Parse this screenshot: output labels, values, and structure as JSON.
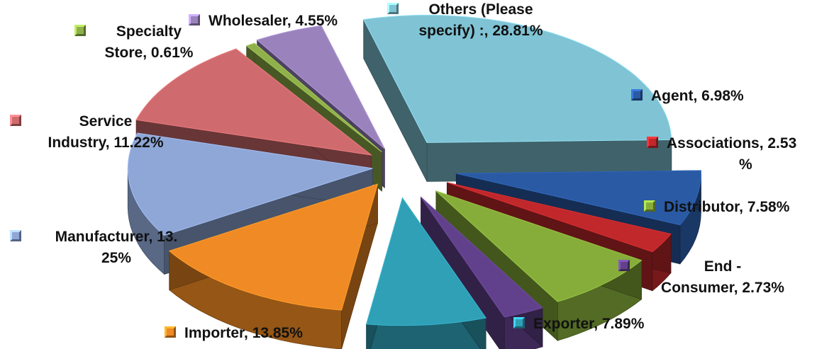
{
  "chart_data": {
    "type": "pie",
    "style": "exploded-3d",
    "legend_placement": "labels-beside-slices",
    "categories": [
      "Others (Please specify) :",
      "Agent",
      "Associations",
      "Distributor",
      "End - Consumer",
      "Exporter",
      "Importer",
      "Manufacturer",
      "Service Industry",
      "Specialty Store",
      "Wholesaler"
    ],
    "values": [
      28.81,
      6.98,
      2.53,
      7.58,
      2.73,
      7.89,
      13.85,
      13.25,
      11.22,
      0.61,
      4.55
    ],
    "colors": [
      "#7fc3d4",
      "#2a5aa3",
      "#c0282b",
      "#86ad3a",
      "#62418c",
      "#2fa0b6",
      "#f08a24",
      "#8ea7d6",
      "#cf6b6e",
      "#8fb04a",
      "#9a83bd"
    ],
    "labels": [
      {
        "category": "Others (Please specify) :",
        "lines": [
          "Others (Please",
          "specify) :, 28.81%"
        ]
      },
      {
        "category": "Agent",
        "lines": [
          "Agent, 6.98%"
        ]
      },
      {
        "category": "Associations",
        "lines": [
          "Associations, 2.53",
          "%"
        ]
      },
      {
        "category": "Distributor",
        "lines": [
          "Distributor, 7.58%"
        ]
      },
      {
        "category": "End - Consumer",
        "lines": [
          "End -",
          "Consumer, 2.73%"
        ]
      },
      {
        "category": "Exporter",
        "lines": [
          "Exporter, 7.89%"
        ]
      },
      {
        "category": "Importer",
        "lines": [
          "Importer, 13.85%"
        ]
      },
      {
        "category": "Manufacturer",
        "lines": [
          "Manufacturer, 13.",
          "25%"
        ]
      },
      {
        "category": "Service Industry",
        "lines": [
          "Service",
          "Industry, 11.22%"
        ]
      },
      {
        "category": "Specialty Store",
        "lines": [
          "Specialty",
          "Store, 0.61%"
        ]
      },
      {
        "category": "Wholesaler",
        "lines": [
          "Wholesaler, 4.55%"
        ]
      }
    ]
  }
}
